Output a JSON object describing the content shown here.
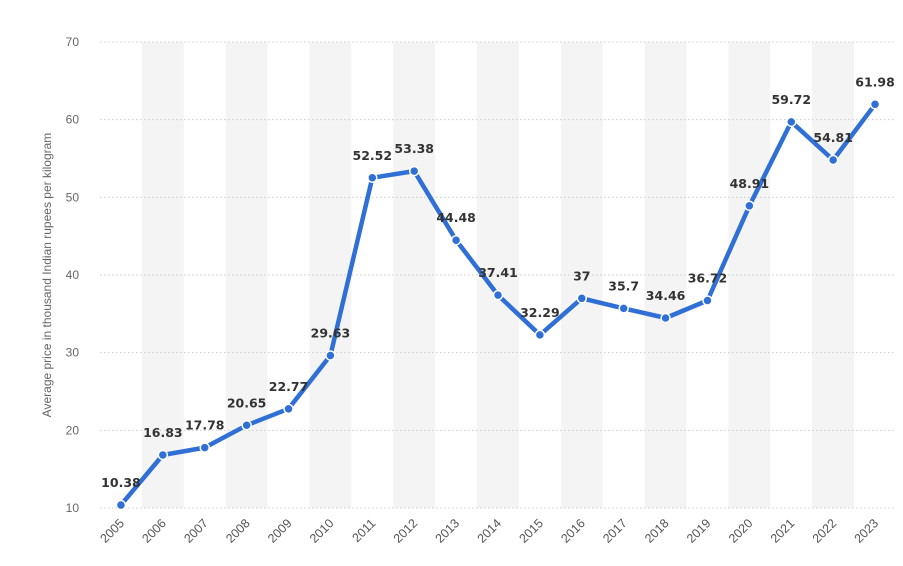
{
  "chart_data": {
    "type": "line",
    "title": "",
    "xlabel": "",
    "ylabel": "Average price in thousand Indian rupees per kilogram",
    "categories": [
      "2005",
      "2006",
      "2007",
      "2008",
      "2009",
      "2010",
      "2011",
      "2012",
      "2013",
      "2014",
      "2015",
      "2016",
      "2017",
      "2018",
      "2019",
      "2020",
      "2021",
      "2022",
      "2023"
    ],
    "values": [
      10.38,
      16.83,
      17.78,
      20.65,
      22.77,
      29.63,
      52.52,
      53.38,
      44.48,
      37.41,
      32.29,
      37,
      35.7,
      34.46,
      36.72,
      48.91,
      59.72,
      54.81,
      61.98
    ],
    "value_labels": [
      "10.38",
      "16.83",
      "17.78",
      "20.65",
      "22.77",
      "29.63",
      "52.52",
      "53.38",
      "44.48",
      "37.41",
      "32.29",
      "37",
      "35.7",
      "34.46",
      "36.72",
      "48.91",
      "59.72",
      "54.81",
      "61.98"
    ],
    "yticks": [
      10,
      20,
      30,
      40,
      50,
      60,
      70
    ],
    "ylim": [
      10,
      70
    ],
    "grid": true,
    "line_color": "#2f6fd6",
    "band_color": "#f4f4f4",
    "grid_color": "#cccccc"
  }
}
